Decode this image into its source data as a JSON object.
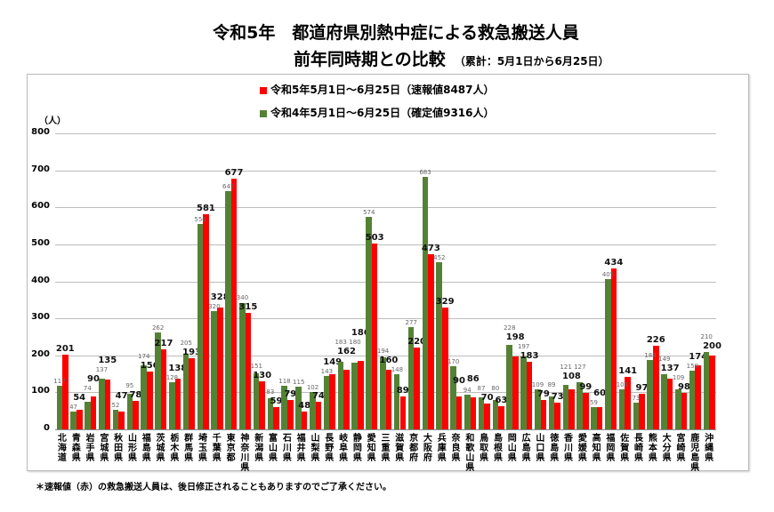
{
  "chart_data": {
    "type": "bar",
    "title": "令和5年　都道府県別熱中症による救急搬送人員",
    "subtitle": "前年同時期との比較",
    "subtitle_note": "（累計：5月1日から6月25日）",
    "ylabel": "（人）",
    "ylim": [
      0,
      800
    ],
    "yticks": [
      0,
      100,
      200,
      300,
      400,
      500,
      600,
      700,
      800
    ],
    "grid": true,
    "legend_position": "top",
    "categories": [
      "北海道",
      "青森県",
      "岩手県",
      "宮城県",
      "秋田県",
      "山形県",
      "福島県",
      "茨城県",
      "栃木県",
      "群馬県",
      "埼玉県",
      "千葉県",
      "東京都",
      "神奈川県",
      "新潟県",
      "富山県",
      "石川県",
      "福井県",
      "山梨県",
      "長野県",
      "岐阜県",
      "静岡県",
      "愛知県",
      "三重県",
      "滋賀県",
      "京都府",
      "大阪府",
      "兵庫県",
      "奈良県",
      "和歌山県",
      "鳥取県",
      "島根県",
      "岡山県",
      "広島県",
      "山口県",
      "徳島県",
      "香川県",
      "愛媛県",
      "高知県",
      "福岡県",
      "佐賀県",
      "長崎県",
      "熊本県",
      "大分県",
      "宮崎県",
      "鹿児島県",
      "沖縄県"
    ],
    "series": [
      {
        "name": "令和5年5月1日～6月25日（速報値8487人）",
        "color": "#ff0000",
        "values": [
          201,
          54,
          90,
          135,
          47,
          78,
          156,
          217,
          138,
          193,
          581,
          328,
          677,
          315,
          130,
          59,
          79,
          48,
          74,
          149,
          162,
          186,
          503,
          160,
          89,
          220,
          473,
          329,
          90,
          86,
          70,
          63,
          198,
          183,
          79,
          73,
          108,
          99,
          60,
          434,
          141,
          97,
          226,
          137,
          98,
          174,
          200
        ]
      },
      {
        "name": "令和4年5月1日～6月25日（確定値9316人）",
        "color": "#548235",
        "values": [
          117,
          47,
          74,
          137,
          52,
          95,
          174,
          262,
          128,
          205,
          556,
          320,
          645,
          340,
          151,
          83,
          118,
          115,
          102,
          143,
          183,
          180,
          574,
          194,
          148,
          277,
          683,
          452,
          170,
          94,
          87,
          80,
          228,
          197,
          109,
          89,
          121,
          127,
          59,
          405,
          108,
          73,
          188,
          149,
          109,
          159,
          210
        ]
      }
    ]
  },
  "footnote": "＊速報値（赤）の救急搬送人員は、後日修正されることもありますのでご了承ください。"
}
